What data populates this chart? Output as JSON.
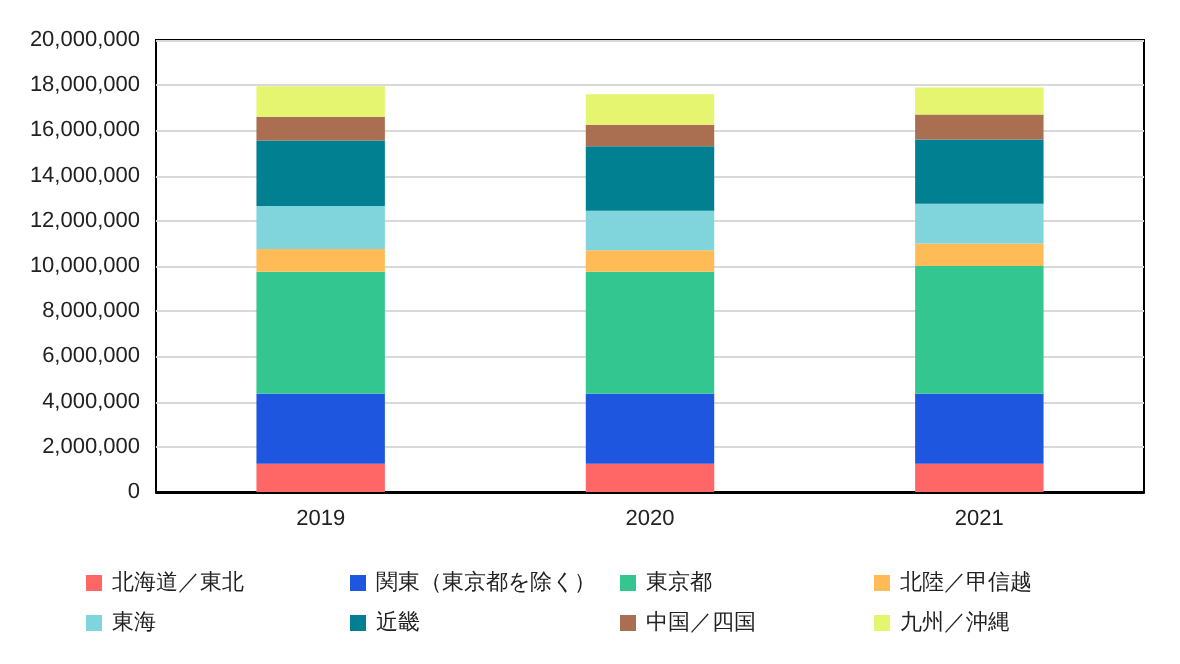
{
  "chart_data": {
    "type": "bar",
    "stacked": true,
    "categories": [
      "2019",
      "2020",
      "2021"
    ],
    "series": [
      {
        "name": "北海道／東北",
        "color": "#ff6666",
        "values": [
          1250000,
          1250000,
          1250000
        ]
      },
      {
        "name": "関東（東京都を除く）",
        "color": "#1f56e0",
        "values": [
          3100000,
          3100000,
          3100000
        ]
      },
      {
        "name": "東京都",
        "color": "#33c690",
        "values": [
          5400000,
          5400000,
          5650000
        ]
      },
      {
        "name": "北陸／甲信越",
        "color": "#ffbb55",
        "values": [
          1000000,
          950000,
          1000000
        ]
      },
      {
        "name": "東海",
        "color": "#80d4dc",
        "values": [
          1900000,
          1750000,
          1750000
        ]
      },
      {
        "name": "近畿",
        "color": "#008090",
        "values": [
          2900000,
          2850000,
          2850000
        ]
      },
      {
        "name": "中国／四国",
        "color": "#aa6e50",
        "values": [
          1050000,
          950000,
          1100000
        ]
      },
      {
        "name": "九州／沖縄",
        "color": "#e6f570",
        "values": [
          1350000,
          1350000,
          1200000
        ]
      }
    ],
    "ylim": [
      0,
      20000000
    ],
    "yticks": [
      0,
      {
        "value": 2000000,
        "label": "2,000,000"
      },
      {
        "value": 4000000,
        "label": "4,000,000"
      },
      {
        "value": 6000000,
        "label": "6,000,000"
      },
      {
        "value": 8000000,
        "label": "8,000,000"
      },
      {
        "value": 10000000,
        "label": "10,000,000"
      },
      {
        "value": 12000000,
        "label": "12,000,000"
      },
      {
        "value": 14000000,
        "label": "14,000,000"
      },
      {
        "value": 16000000,
        "label": "16,000,000"
      },
      {
        "value": 18000000,
        "label": "18,000,000"
      },
      {
        "value": 20000000,
        "label": "20,000,000"
      }
    ],
    "grid": "y",
    "legend": "bottom"
  }
}
